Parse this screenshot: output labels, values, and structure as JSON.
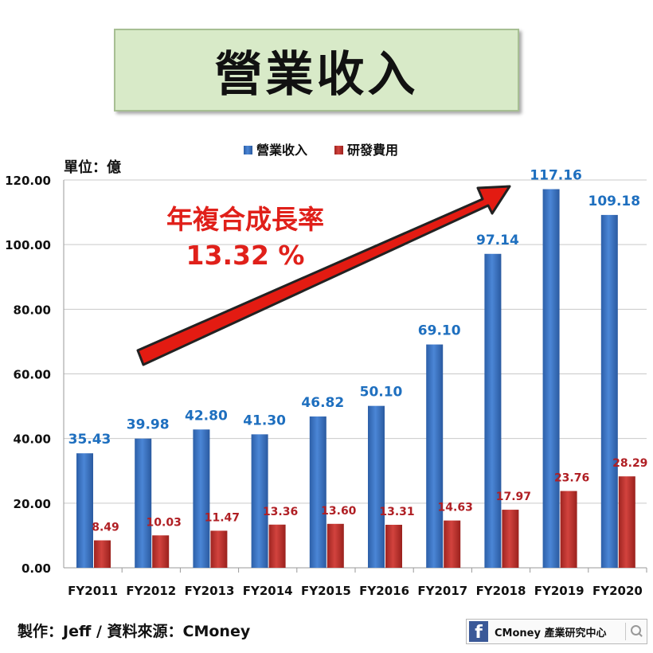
{
  "title": "營業收入",
  "unit_label": "單位：億",
  "annotation": {
    "line1": "年複合成長率",
    "line2": "13.32 %"
  },
  "footer": {
    "credit": "製作：Jeff / 資料來源：CMoney",
    "badge_text": "CMoney 產業研究中心",
    "badge_icon": "facebook-icon",
    "search_icon": "search-icon"
  },
  "colors": {
    "revenue": "#3a74c6",
    "rnd": "#c0312f",
    "revenue_label": "#1e6fbf",
    "rnd_label": "#b01f24",
    "annotation_text": "#e0201a",
    "arrow_fill": "#e31b12"
  },
  "chart_data": {
    "type": "bar",
    "categories": [
      "FY2011",
      "FY2012",
      "FY2013",
      "FY2014",
      "FY2015",
      "FY2016",
      "FY2017",
      "FY2018",
      "FY2019",
      "FY2020"
    ],
    "series": [
      {
        "name": "營業收入",
        "values": [
          35.43,
          39.98,
          42.8,
          41.3,
          46.82,
          50.1,
          69.1,
          97.14,
          117.16,
          109.18
        ]
      },
      {
        "name": "研發費用",
        "values": [
          8.49,
          10.03,
          11.47,
          13.36,
          13.6,
          13.31,
          14.63,
          17.97,
          23.76,
          28.29
        ]
      }
    ],
    "ylim": [
      0,
      120
    ],
    "yticks": [
      "0.00",
      "20.00",
      "40.00",
      "60.00",
      "80.00",
      "100.00",
      "120.00"
    ],
    "grid": true,
    "legend_position": "top"
  }
}
